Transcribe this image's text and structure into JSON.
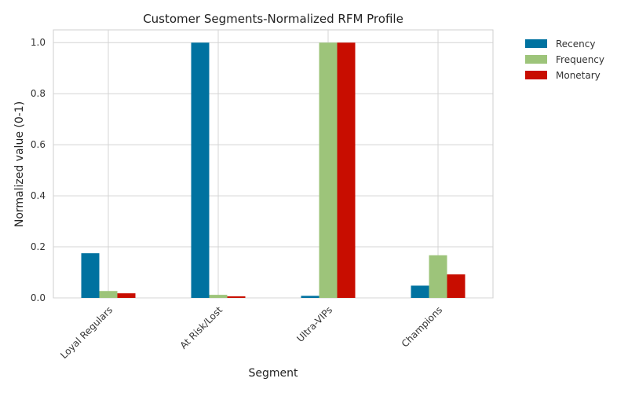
{
  "chart_data": {
    "type": "bar",
    "title": "Customer Segments-Normalized RFM Profile",
    "xlabel": "Segment",
    "ylabel": "Normalized value (0-1)",
    "categories": [
      "Loyal Regulars",
      "At Risk/Lost",
      "Ultra-VIPs",
      "Champions"
    ],
    "series": [
      {
        "name": "Recency",
        "color": "#0072a0",
        "values": [
          0.175,
          1.0,
          0.008,
          0.048
        ]
      },
      {
        "name": "Frequency",
        "color": "#9dc47a",
        "values": [
          0.027,
          0.012,
          1.0,
          0.167
        ]
      },
      {
        "name": "Monetary",
        "color": "#c80d00",
        "values": [
          0.018,
          0.006,
          1.0,
          0.092
        ]
      }
    ],
    "ylim": [
      0,
      1.05
    ],
    "yticks": [
      "0.0",
      "0.2",
      "0.4",
      "0.6",
      "0.8",
      "1.0"
    ],
    "grid": true,
    "legend_position": "outside-top-right"
  }
}
